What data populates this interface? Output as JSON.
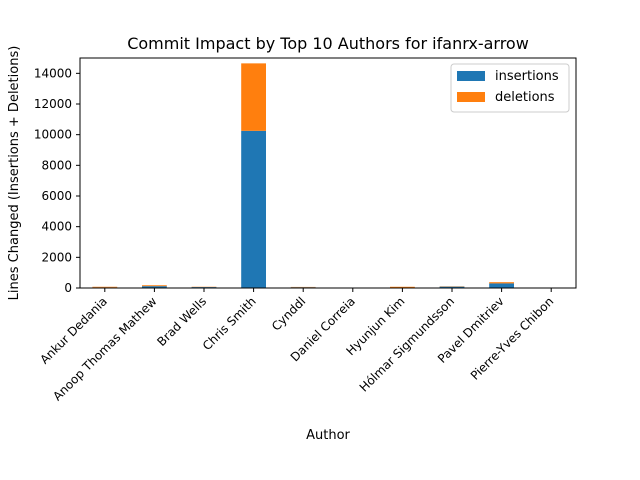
{
  "chart_data": {
    "type": "bar",
    "stacked": true,
    "title": "Commit Impact by Top 10 Authors for ifanrx-arrow",
    "xlabel": "Author",
    "ylabel": "Lines Changed (Insertions + Deletions)",
    "ylim": [
      0,
      15000
    ],
    "yticks": [
      0,
      2000,
      4000,
      6000,
      8000,
      10000,
      12000,
      14000
    ],
    "grid": false,
    "legend_position": "top-right",
    "categories": [
      "Ankur Dedania",
      "Anoop Thomas Mathew",
      "Brad Wells",
      "Chris Smith",
      "Cynddl",
      "Daniel Correia",
      "Hyunjun Kim",
      "Hólmar Sigmundsson",
      "Pavel Dmitriev",
      "Pierre-Yves Chibon"
    ],
    "series": [
      {
        "name": "insertions",
        "color": "#1f77b4",
        "values": [
          40,
          120,
          60,
          10250,
          50,
          10,
          30,
          90,
          300,
          5
        ]
      },
      {
        "name": "deletions",
        "color": "#ff7f0e",
        "values": [
          40,
          60,
          20,
          4400,
          20,
          5,
          50,
          20,
          80,
          3
        ]
      }
    ]
  }
}
